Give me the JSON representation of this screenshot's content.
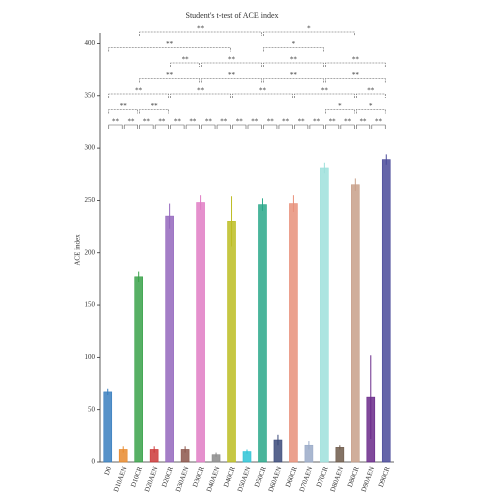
{
  "chart_data": {
    "type": "bar",
    "title": "Student's t-test of ACE index",
    "y_label": "ACE index",
    "categories": [
      "D0",
      "D10AEN",
      "D10CR",
      "D20AEN",
      "D20CR",
      "D30AEN",
      "D30CR",
      "D40AEN",
      "D40CR",
      "D50AEN",
      "D50CR",
      "D60AEN",
      "D60CR",
      "D70AEN",
      "D70CR",
      "D80AEN",
      "D80CR",
      "D90AEN",
      "D90CR"
    ],
    "values": [
      67,
      12,
      177,
      12,
      235,
      12,
      248,
      7,
      230,
      10,
      246,
      21,
      247,
      16,
      281,
      14,
      265,
      62,
      289
    ],
    "errors": [
      3,
      3,
      5,
      3,
      12,
      3,
      7,
      2,
      24,
      2,
      6,
      5,
      8,
      4,
      5,
      2,
      6,
      40,
      5
    ],
    "colors": [
      "#3a7fbf",
      "#e88a2e",
      "#3aa24a",
      "#cc3a3a",
      "#9467bd",
      "#8c564b",
      "#e07cc4",
      "#8a8a8a",
      "#bcbd22",
      "#2ec4d6",
      "#2aa88a",
      "#3b4a7a",
      "#e8907a",
      "#9aaac8",
      "#9ee0dc",
      "#6e5a4a",
      "#c8a08a",
      "#6a2a8a",
      "#4a4a9a"
    ],
    "ylim": [
      0,
      410
    ],
    "yticks": [
      0,
      50,
      100,
      150,
      200,
      250,
      300,
      350,
      400
    ],
    "brackets": [
      [
        {
          "from": 0,
          "to": 1,
          "label": "**"
        },
        {
          "from": 1,
          "to": 2,
          "label": "**"
        },
        {
          "from": 2,
          "to": 3,
          "label": "**"
        },
        {
          "from": 3,
          "to": 4,
          "label": "**"
        },
        {
          "from": 4,
          "to": 5,
          "label": "**"
        },
        {
          "from": 5,
          "to": 6,
          "label": "**"
        },
        {
          "from": 6,
          "to": 7,
          "label": "**"
        },
        {
          "from": 7,
          "to": 8,
          "label": "**"
        },
        {
          "from": 8,
          "to": 9,
          "label": "**"
        },
        {
          "from": 9,
          "to": 10,
          "label": "**"
        },
        {
          "from": 10,
          "to": 11,
          "label": "**"
        },
        {
          "from": 11,
          "to": 12,
          "label": "**"
        },
        {
          "from": 12,
          "to": 13,
          "label": "**"
        },
        {
          "from": 13,
          "to": 14,
          "label": "**"
        },
        {
          "from": 14,
          "to": 15,
          "label": "**"
        },
        {
          "from": 15,
          "to": 16,
          "label": "**"
        },
        {
          "from": 16,
          "to": 17,
          "label": "**"
        },
        {
          "from": 17,
          "to": 18,
          "label": "**"
        }
      ],
      [
        {
          "from": 0,
          "to": 2,
          "label": "**"
        },
        {
          "from": 2,
          "to": 4,
          "label": "**"
        },
        {
          "from": 14,
          "to": 16,
          "label": "*"
        },
        {
          "from": 16,
          "to": 18,
          "label": "*"
        }
      ],
      [
        {
          "from": 0,
          "to": 4,
          "label": "**"
        },
        {
          "from": 4,
          "to": 8,
          "label": "**"
        },
        {
          "from": 8,
          "to": 12,
          "label": "**"
        },
        {
          "from": 12,
          "to": 16,
          "label": "**"
        },
        {
          "from": 16,
          "to": 18,
          "label": "**"
        }
      ],
      [
        {
          "from": 2,
          "to": 6,
          "label": "**"
        },
        {
          "from": 6,
          "to": 10,
          "label": "**"
        },
        {
          "from": 10,
          "to": 14,
          "label": "**"
        },
        {
          "from": 14,
          "to": 18,
          "label": "**"
        }
      ],
      [
        {
          "from": 4,
          "to": 6,
          "label": "**"
        },
        {
          "from": 6,
          "to": 10,
          "label": "**"
        },
        {
          "from": 10,
          "to": 14,
          "label": "**"
        },
        {
          "from": 14,
          "to": 18,
          "label": "**"
        }
      ],
      [
        {
          "from": 0,
          "to": 8,
          "label": "**"
        },
        {
          "from": 10,
          "to": 14,
          "label": "*"
        }
      ],
      [
        {
          "from": 2,
          "to": 10,
          "label": "**"
        },
        {
          "from": 10,
          "to": 16,
          "label": "*"
        }
      ]
    ]
  }
}
